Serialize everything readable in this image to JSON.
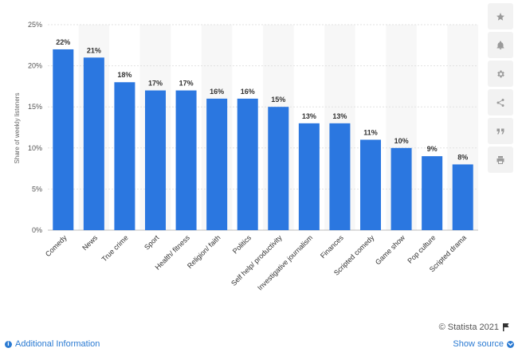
{
  "chart_data": {
    "type": "bar",
    "categories": [
      "Comedy",
      "News",
      "True crime",
      "Sport",
      "Health/ fitness",
      "Religion/ faith",
      "Politics",
      "Self help/ productivity",
      "Investigative journalism",
      "Finances",
      "Scripted comedy",
      "Game show",
      "Pop culture",
      "Scripted drama"
    ],
    "values": [
      22,
      21,
      18,
      17,
      17,
      16,
      16,
      15,
      13,
      13,
      11,
      10,
      9,
      8
    ],
    "data_labels": [
      "22%",
      "21%",
      "18%",
      "17%",
      "17%",
      "16%",
      "16%",
      "15%",
      "13%",
      "13%",
      "11%",
      "10%",
      "9%",
      "8%"
    ],
    "yticks": [
      0,
      5,
      10,
      15,
      20,
      25
    ],
    "ytick_labels": [
      "0%",
      "5%",
      "10%",
      "15%",
      "20%",
      "25%"
    ],
    "ylabel": "Share of weekly listeners",
    "ylim": [
      0,
      25
    ],
    "grid": true,
    "bar_color": "#2b77e0"
  },
  "toolbar": {
    "icons": [
      "star-icon",
      "bell-icon",
      "gear-icon",
      "share-icon",
      "quote-icon",
      "print-icon"
    ]
  },
  "copyright": "© Statista 2021",
  "footer": {
    "additional_info": "Additional Information",
    "show_source": "Show source"
  }
}
